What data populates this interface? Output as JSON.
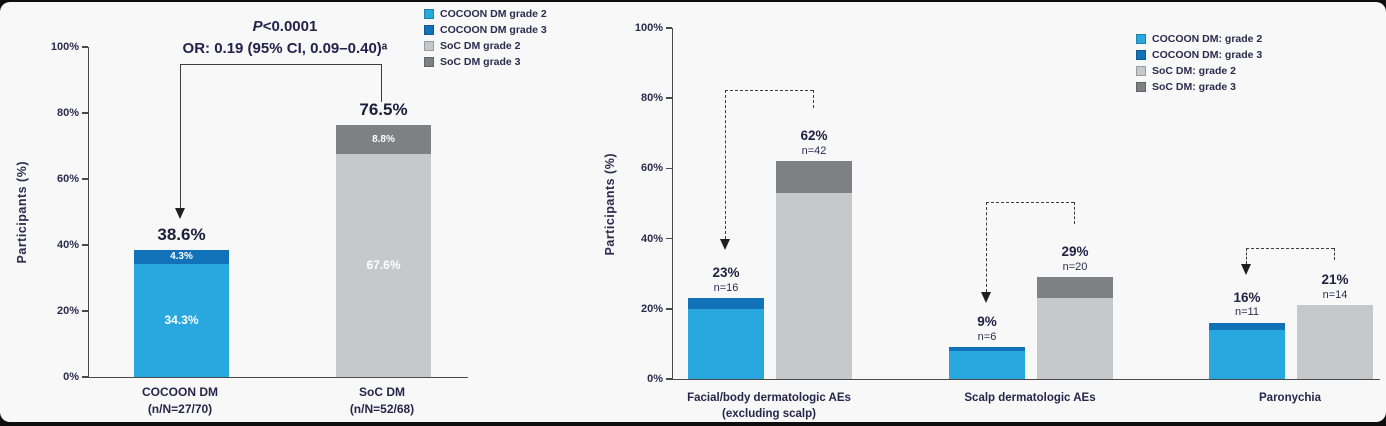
{
  "colors": {
    "cocoon_grade2": "#29A8DF",
    "cocoon_grade3": "#1171B9",
    "soc_grade2": "#C7C8CA",
    "soc_grade3": "#7E8083"
  },
  "chart_data": [
    {
      "type": "bar",
      "stacked": true,
      "title": "",
      "xlabel": "",
      "ylabel": "Participants (%)",
      "ylim": [
        0,
        100
      ],
      "grid": false,
      "legend_position": "top-right",
      "yticks_display": [
        "0%",
        "20%",
        "40%",
        "60%",
        "80%",
        "100%"
      ],
      "annotations": {
        "p_prefix": "P",
        "p_rest": "<0.0001",
        "or_line": "OR: 0.19 (95% CI, 0.09–0.40)ᵃ"
      },
      "legend": [
        {
          "label": "COCOON DM grade 2"
        },
        {
          "label": "COCOON DM grade 3"
        },
        {
          "label": "SoC DM grade 2"
        },
        {
          "label": "SoC DM grade 3"
        }
      ],
      "bars": [
        {
          "category_line1": "COCOON DM",
          "category_line2": "(n/N=27/70)",
          "total": 38.6,
          "total_label": "38.6%",
          "segments": {
            "grade2": 34.3,
            "grade3": 4.3
          },
          "segment_labels": {
            "grade2": "34.3%",
            "grade3": "4.3%"
          }
        },
        {
          "category_line1": "SoC DM",
          "category_line2": "(n/N=52/68)",
          "total": 76.5,
          "total_label": "76.5%",
          "segments": {
            "grade2": 67.6,
            "grade3": 8.8
          },
          "segment_labels": {
            "grade2": "67.6%",
            "grade3": "8.8%"
          }
        }
      ]
    },
    {
      "type": "bar",
      "stacked": true,
      "title": "",
      "xlabel": "",
      "ylabel": "Participants (%)",
      "ylim": [
        0,
        100
      ],
      "grid": false,
      "legend_position": "top-right",
      "yticks_display": [
        "0%",
        "20%",
        "40%",
        "60%",
        "80%",
        "100%"
      ],
      "legend": [
        {
          "label": "COCOON DM: grade 2"
        },
        {
          "label": "COCOON DM: grade 3"
        },
        {
          "label": "SoC DM: grade 2"
        },
        {
          "label": "SoC DM: grade 3"
        }
      ],
      "groups": [
        {
          "category_line1": "Facial/body dermatologic AEs",
          "category_line2": "(excluding scalp)",
          "cocoon": {
            "total": 23,
            "total_label": "23%",
            "n_label": "n=16",
            "grade2": 20,
            "grade3": 3
          },
          "soc": {
            "total": 62,
            "total_label": "62%",
            "n_label": "n=42",
            "grade2": 53,
            "grade3": 9
          }
        },
        {
          "category_line1": "Scalp dermatologic AEs",
          "category_line2": "",
          "cocoon": {
            "total": 9,
            "total_label": "9%",
            "n_label": "n=6",
            "grade2": 8,
            "grade3": 1
          },
          "soc": {
            "total": 29,
            "total_label": "29%",
            "n_label": "n=20",
            "grade2": 23,
            "grade3": 6
          }
        },
        {
          "category_line1": "Paronychia",
          "category_line2": "",
          "cocoon": {
            "total": 16,
            "total_label": "16%",
            "n_label": "n=11",
            "grade2": 14,
            "grade3": 2
          },
          "soc": {
            "total": 21,
            "total_label": "21%",
            "n_label": "n=14",
            "grade2": 21,
            "grade3": 0
          }
        }
      ]
    }
  ]
}
